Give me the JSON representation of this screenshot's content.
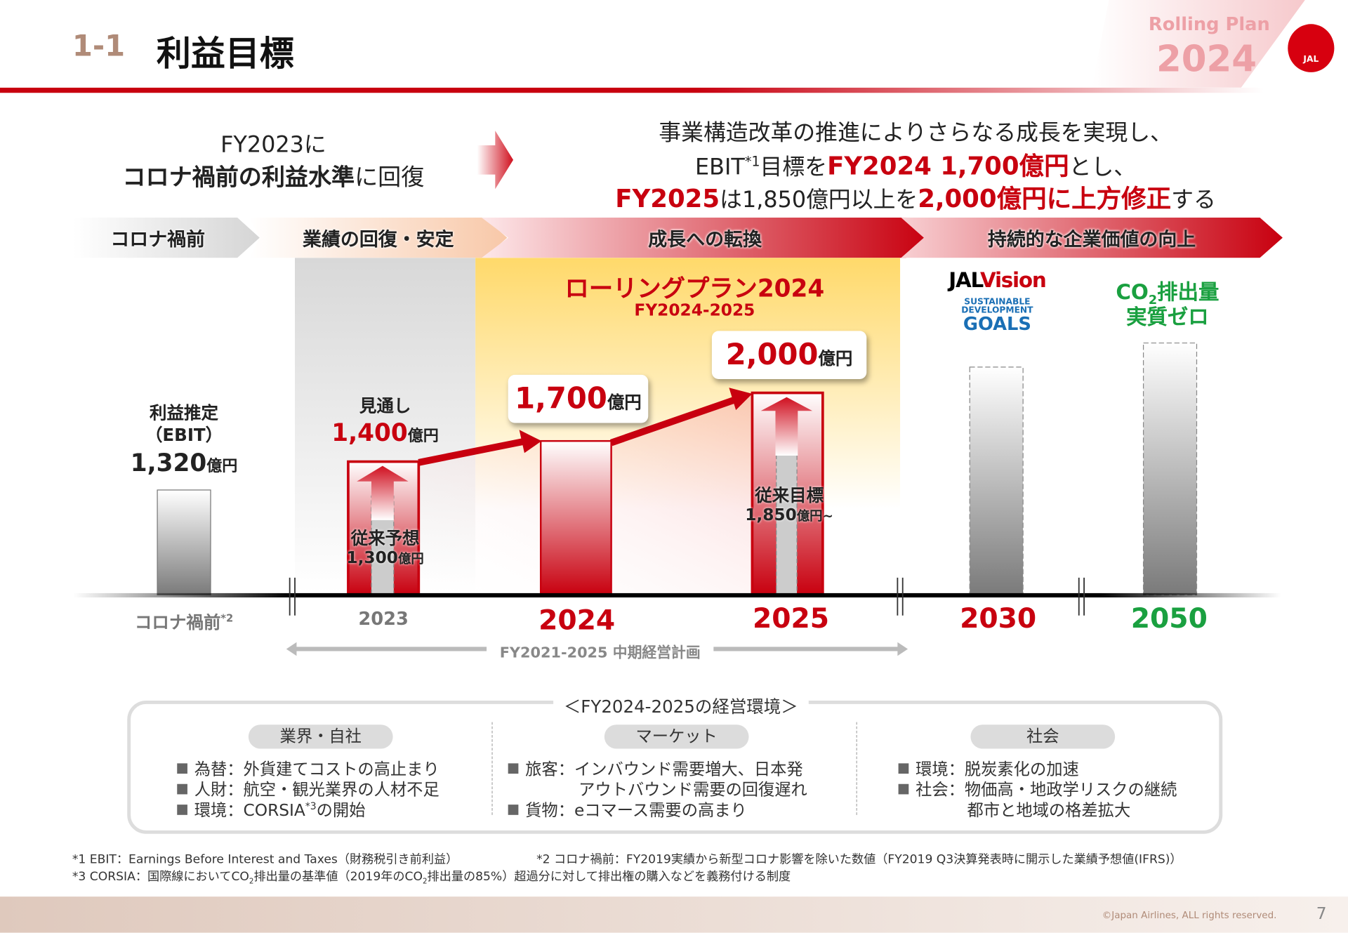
{
  "header": {
    "section": "1-1",
    "title": "利益目標",
    "badge_line1": "Rolling Plan",
    "badge_line2": "2024",
    "logo_text": "JAL"
  },
  "summary_left": {
    "line1": "FY2023に",
    "line2_bold": "コロナ禍前の利益水準",
    "line2_rest": "に回復"
  },
  "summary_right": {
    "line1": "事業構造改革の推進によりさらなる成長を実現し、",
    "line2_a": "EBIT",
    "line2_sup": "*1",
    "line2_b": "目標を",
    "line2_red": "FY2024 1,700億円",
    "line2_c": "とし、",
    "line3_red1": "FY2025",
    "line3_a": "は1,850億円以上を",
    "line3_red2": "2,000億円に上方修正",
    "line3_b": "する"
  },
  "phases": [
    "コロナ禍前",
    "業績の回復・安定",
    "成長への転換",
    "持続的な企業価値の向上"
  ],
  "plan": {
    "title": "ローリングプラン2024",
    "period": "FY2024-2025"
  },
  "bars": {
    "precovid": {
      "label1": "利益推定",
      "label2": "（EBIT）",
      "value": "1,320",
      "unit": "億円",
      "axis": "コロナ禍前",
      "axis_sup": "*2"
    },
    "y2023": {
      "label": "見通し",
      "value": "1,400",
      "unit": "億円",
      "prior_label": "従来予想",
      "prior_value": "1,300",
      "prior_unit": "億円",
      "axis": "2023"
    },
    "y2024": {
      "value": "1,700",
      "unit": "億円",
      "axis": "2024"
    },
    "y2025": {
      "value": "2,000",
      "unit": "億円",
      "prior_label": "従来目標",
      "prior_value": "1,850",
      "prior_unit": "億円~",
      "axis": "2025"
    },
    "y2030": {
      "vision_a": "JAL",
      "vision_b": "Vision",
      "sdg1": "SUSTAINABLE",
      "sdg2": "DEVELOPMENT",
      "sdg3": "GOALS",
      "axis": "2030"
    },
    "y2050": {
      "co2_a": "CO",
      "co2_sub": "2",
      "co2_b": "排出量",
      "line2": "実質ゼロ",
      "axis": "2050"
    }
  },
  "midterm_plan": "FY2021-2025 中期経営計画",
  "environment": {
    "title": "＜FY2024-2025の経営環境＞",
    "columns": [
      {
        "tag": "業界・自社",
        "items": [
          "為替：外貨建てコストの高止まり",
          "人財：航空・観光業界の人材不足",
          "環境：CORSIA"
        ],
        "item3_sup": "*3",
        "item3_rest": "の開始"
      },
      {
        "tag": "マーケット",
        "items": [
          "旅客：インバウンド需要増大、日本発",
          "アウトバウンド需要の回復遅れ",
          "貨物：eコマース需要の高まり"
        ]
      },
      {
        "tag": "社会",
        "items": [
          "環境：脱炭素化の加速",
          "社会：物価高・地政学リスクの継続",
          "都市と地域の格差拡大"
        ]
      }
    ]
  },
  "footnotes": {
    "n1": "*1 EBIT：Earnings Before Interest and Taxes（財務税引き前利益）",
    "n2": "*2 コロナ禍前：FY2019実績から新型コロナ影響を除いた数値（FY2019 Q3決算発表時に開示した業績予想値(IFRS)）",
    "n3a": "*3 CORSIA：国際線においてCO",
    "n3b": "排出量の基準値（2019年のCO",
    "n3c": "排出量の85%）超過分に対して排出権の購入などを義務付ける制度",
    "sub": "2"
  },
  "footer": {
    "copyright": "©Japan Airlines, ALL rights reserved.",
    "page": "7"
  },
  "colors": {
    "accent": "#c8000f",
    "green": "#1aa040",
    "muted_section": "#b08b78"
  }
}
